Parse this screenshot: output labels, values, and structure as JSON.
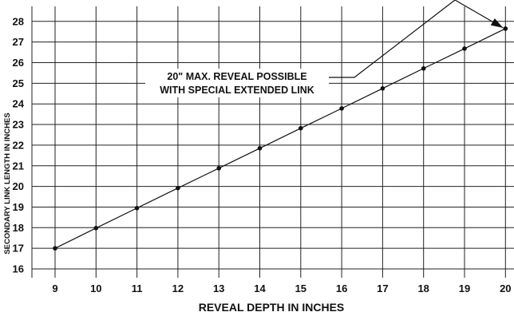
{
  "chart_data": {
    "type": "line",
    "title": "",
    "xlabel": "REVEAL DEPTH IN INCHES",
    "ylabel": "SECONDARY LINK LENGTH IN INCHES",
    "xlim": [
      9,
      20
    ],
    "ylim": [
      16,
      28
    ],
    "x_ticks": [
      9,
      10,
      11,
      12,
      13,
      14,
      15,
      16,
      17,
      18,
      19,
      20
    ],
    "y_ticks": [
      16,
      17,
      18,
      19,
      20,
      21,
      22,
      23,
      24,
      25,
      26,
      27,
      28
    ],
    "grid": true,
    "legend": "none",
    "series": [
      {
        "x": [
          9,
          10,
          11,
          12,
          13,
          14,
          15,
          16,
          17,
          18,
          19,
          20
        ],
        "y": [
          17.0,
          17.98,
          18.95,
          19.92,
          20.88,
          21.85,
          22.82,
          23.78,
          24.75,
          25.72,
          26.68,
          27.65
        ]
      }
    ],
    "annotations": [
      {
        "lines": [
          "20\" MAX. REVEAL POSSIBLE",
          "WITH SPECIAL EXTENDED LINK"
        ],
        "points_to": {
          "x": 20,
          "y": 27.65
        }
      }
    ],
    "colors": {
      "line": "#111111",
      "grid": "#222222",
      "text": "#111111"
    }
  }
}
